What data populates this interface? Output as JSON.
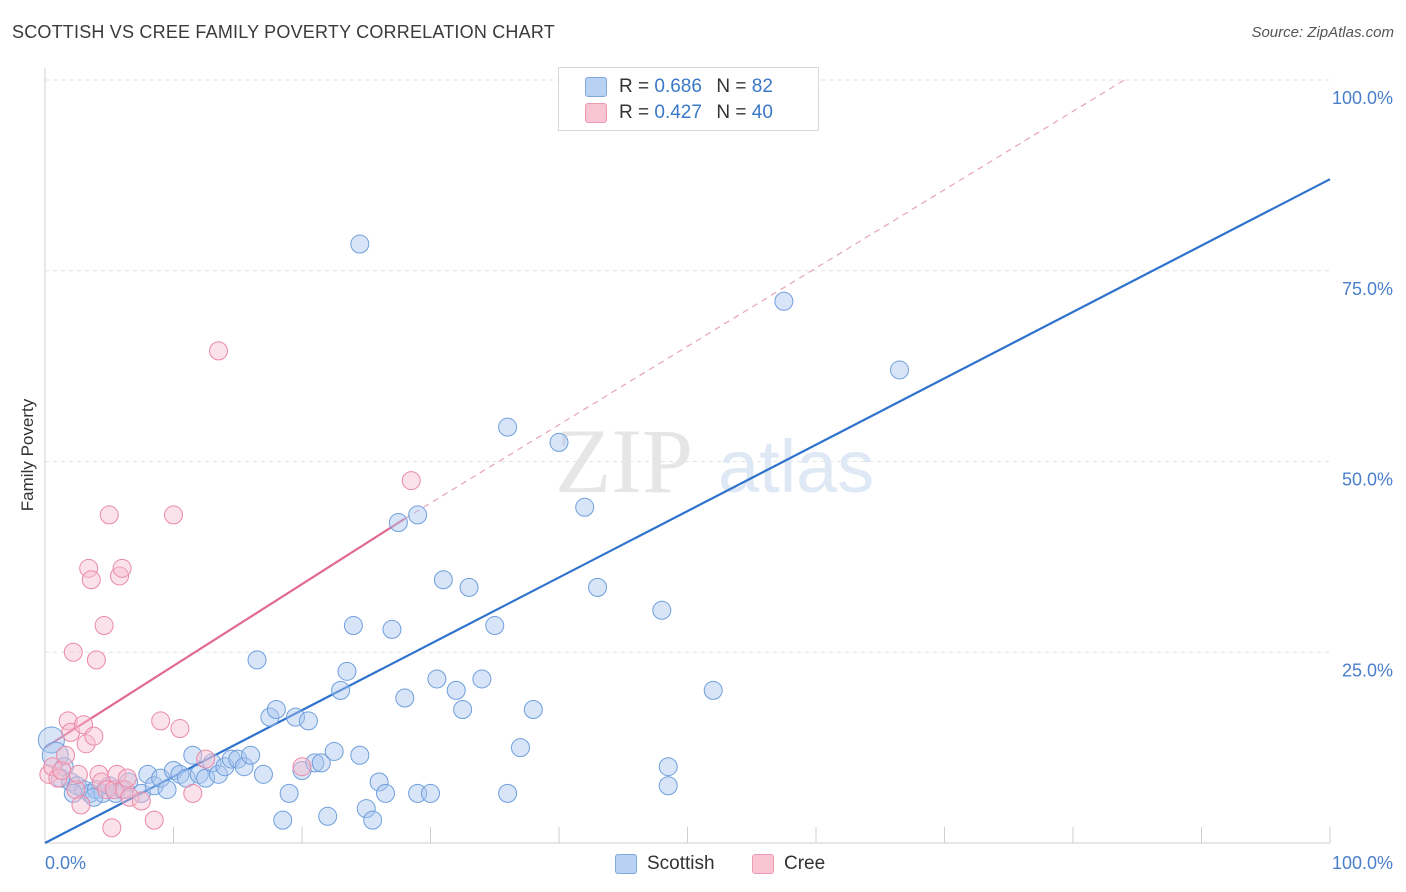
{
  "header": {
    "title": "SCOTTISH VS CREE FAMILY POVERTY CORRELATION CHART",
    "source": "Source: ZipAtlas.com"
  },
  "watermark": {
    "zip": "ZIP",
    "atlas": "atlas"
  },
  "legend": {
    "r_label": "R =",
    "n_label": "N =",
    "entries": [
      {
        "r": "0.686",
        "n": "82"
      },
      {
        "r": "0.427",
        "n": "40"
      }
    ]
  },
  "colors": {
    "scottish_fill": "#a9c6ef",
    "scottish_stroke": "#6f9fdc",
    "scottish_line": "#2f72cc",
    "cree_fill": "#f7bccf",
    "cree_stroke": "#e98aa8",
    "cree_line": "#e26a92",
    "tick_label": "#4a7fcb",
    "grid": "#e3e3e3"
  },
  "chart_data": {
    "type": "scatter",
    "title": "SCOTTISH VS CREE FAMILY POVERTY CORRELATION CHART",
    "ylabel": "Family Poverty",
    "xlabel": "",
    "xlim": [
      0,
      100
    ],
    "ylim": [
      0,
      100
    ],
    "x_tick_labels": [
      "0.0%",
      "100.0%"
    ],
    "y_ticks": [
      25,
      50,
      75,
      100
    ],
    "y_tick_labels": [
      "25.0%",
      "50.0%",
      "75.0%",
      "100.0%"
    ],
    "grid": true,
    "legend_position": "top-center",
    "series": [
      {
        "name": "Scottish",
        "r": 0.686,
        "n": 82,
        "trend": {
          "x": [
            0,
            100
          ],
          "y": [
            0,
            87
          ]
        },
        "points": [
          [
            0.5,
            13.5
          ],
          [
            0.8,
            11.5
          ],
          [
            1.5,
            10
          ],
          [
            1.2,
            8.5
          ],
          [
            2,
            8
          ],
          [
            2.5,
            7.5
          ],
          [
            3,
            7
          ],
          [
            3.5,
            6.5
          ],
          [
            4,
            7
          ],
          [
            4.5,
            6.5
          ],
          [
            2.2,
            6.5
          ],
          [
            3.8,
            6
          ],
          [
            5,
            7.5
          ],
          [
            5.5,
            6.5
          ],
          [
            6,
            7
          ],
          [
            6.5,
            8
          ],
          [
            7.5,
            6.5
          ],
          [
            8,
            9
          ],
          [
            8.5,
            7.5
          ],
          [
            9,
            8.5
          ],
          [
            9.5,
            7
          ],
          [
            10,
            9.5
          ],
          [
            10.5,
            9
          ],
          [
            11,
            8.5
          ],
          [
            11.5,
            11.5
          ],
          [
            12,
            9
          ],
          [
            12.5,
            8.5
          ],
          [
            13,
            10.5
          ],
          [
            13.5,
            9
          ],
          [
            14,
            10
          ],
          [
            14.5,
            11
          ],
          [
            15,
            11
          ],
          [
            15.5,
            10
          ],
          [
            16,
            11.5
          ],
          [
            16.5,
            24
          ],
          [
            17,
            9
          ],
          [
            17.5,
            16.5
          ],
          [
            18,
            17.5
          ],
          [
            18.5,
            3
          ],
          [
            19,
            6.5
          ],
          [
            19.5,
            16.5
          ],
          [
            20,
            9.5
          ],
          [
            20.5,
            16
          ],
          [
            21,
            10.5
          ],
          [
            21.5,
            10.5
          ],
          [
            22,
            3.5
          ],
          [
            22.5,
            12
          ],
          [
            23,
            20
          ],
          [
            23.5,
            22.5
          ],
          [
            24,
            28.5
          ],
          [
            24.5,
            11.5
          ],
          [
            25,
            4.5
          ],
          [
            25.5,
            3
          ],
          [
            26,
            8
          ],
          [
            26.5,
            6.5
          ],
          [
            27,
            28
          ],
          [
            28,
            19
          ],
          [
            29,
            6.5
          ],
          [
            30,
            6.5
          ],
          [
            30.5,
            21.5
          ],
          [
            31,
            34.5
          ],
          [
            32,
            20
          ],
          [
            32.5,
            17.5
          ],
          [
            33,
            33.5
          ],
          [
            34,
            21.5
          ],
          [
            35,
            28.5
          ],
          [
            36,
            6.5
          ],
          [
            37,
            12.5
          ],
          [
            38,
            17.5
          ],
          [
            27.5,
            42
          ],
          [
            29,
            43
          ],
          [
            36,
            54.5
          ],
          [
            40,
            52.5
          ],
          [
            42,
            44
          ],
          [
            43,
            33.5
          ],
          [
            48,
            30.5
          ],
          [
            48.5,
            10
          ],
          [
            48.5,
            7.5
          ],
          [
            52,
            20
          ],
          [
            57.5,
            71
          ],
          [
            24.5,
            78.5
          ],
          [
            66.5,
            62
          ]
        ]
      },
      {
        "name": "Cree",
        "r": 0.427,
        "n": 40,
        "trend": {
          "x": [
            0,
            28
          ],
          "y": [
            12.5,
            42.5
          ]
        },
        "dashed_extension": {
          "x": [
            28,
            84
          ],
          "y": [
            42.5,
            100
          ]
        },
        "points": [
          [
            0.3,
            9
          ],
          [
            0.6,
            10
          ],
          [
            1,
            8.5
          ],
          [
            1.3,
            9.5
          ],
          [
            1.6,
            11.5
          ],
          [
            1.8,
            16
          ],
          [
            2,
            14.5
          ],
          [
            2.2,
            25
          ],
          [
            2.4,
            7
          ],
          [
            2.6,
            9
          ],
          [
            2.8,
            5
          ],
          [
            3,
            15.5
          ],
          [
            3.2,
            13
          ],
          [
            3.4,
            36
          ],
          [
            3.6,
            34.5
          ],
          [
            3.8,
            14
          ],
          [
            4,
            24
          ],
          [
            4.2,
            9
          ],
          [
            4.4,
            8
          ],
          [
            4.6,
            28.5
          ],
          [
            4.8,
            7
          ],
          [
            5,
            43
          ],
          [
            5.2,
            2
          ],
          [
            5.4,
            7
          ],
          [
            5.6,
            9
          ],
          [
            5.8,
            35
          ],
          [
            6,
            36
          ],
          [
            6.2,
            7
          ],
          [
            6.4,
            8.5
          ],
          [
            6.6,
            6
          ],
          [
            7.5,
            5.5
          ],
          [
            8.5,
            3
          ],
          [
            9,
            16
          ],
          [
            10,
            43
          ],
          [
            10.5,
            15
          ],
          [
            11.5,
            6.5
          ],
          [
            13.5,
            64.5
          ],
          [
            12.5,
            11
          ],
          [
            20,
            10
          ],
          [
            28.5,
            47.5
          ]
        ]
      }
    ]
  },
  "bottom_legend": [
    "Scottish",
    "Cree"
  ]
}
